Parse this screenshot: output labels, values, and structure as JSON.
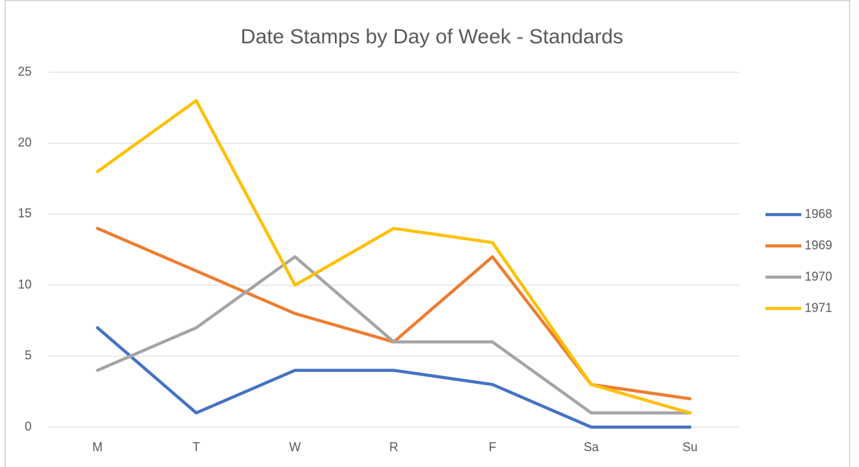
{
  "chart_data": {
    "type": "line",
    "title": "Date Stamps by Day of Week - Standards",
    "categories": [
      "M",
      "T",
      "W",
      "R",
      "F",
      "Sa",
      "Su"
    ],
    "series": [
      {
        "name": "1968",
        "color": "#4472c4",
        "values": [
          7,
          1,
          4,
          4,
          3,
          0,
          0
        ]
      },
      {
        "name": "1969",
        "color": "#ed7d31",
        "values": [
          14,
          11,
          8,
          6,
          12,
          3,
          2
        ]
      },
      {
        "name": "1970",
        "color": "#a5a5a5",
        "values": [
          4,
          7,
          12,
          6,
          6,
          1,
          1
        ]
      },
      {
        "name": "1971",
        "color": "#ffc000",
        "values": [
          18,
          23,
          10,
          14,
          13,
          3,
          1
        ]
      }
    ],
    "ylim": [
      0,
      25
    ],
    "yticks": [
      0,
      5,
      10,
      15,
      20,
      25
    ],
    "grid": true,
    "legend": "right"
  }
}
